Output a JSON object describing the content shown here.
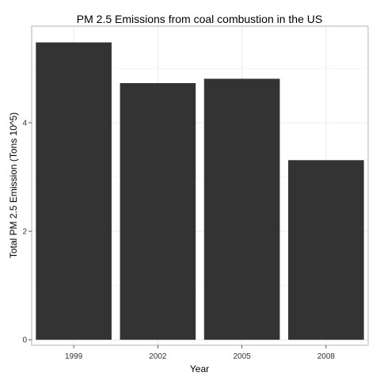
{
  "chart_data": {
    "type": "bar",
    "title": "PM 2.5 Emissions from coal combustion in the US",
    "xlabel": "Year",
    "ylabel": "Total PM 2.5 Emission (Tons 10^5)",
    "categories": [
      "1999",
      "2002",
      "2005",
      "2008"
    ],
    "values": [
      5.48,
      4.73,
      4.81,
      3.31
    ],
    "ylim": [
      -0.1,
      5.78
    ],
    "yticks": [
      0,
      2,
      4
    ],
    "ytick_labels": [
      "0",
      "2",
      "4"
    ],
    "grid": true,
    "bar_color": "#333333",
    "grid_color": "#e6e6e6",
    "legend": "none"
  }
}
